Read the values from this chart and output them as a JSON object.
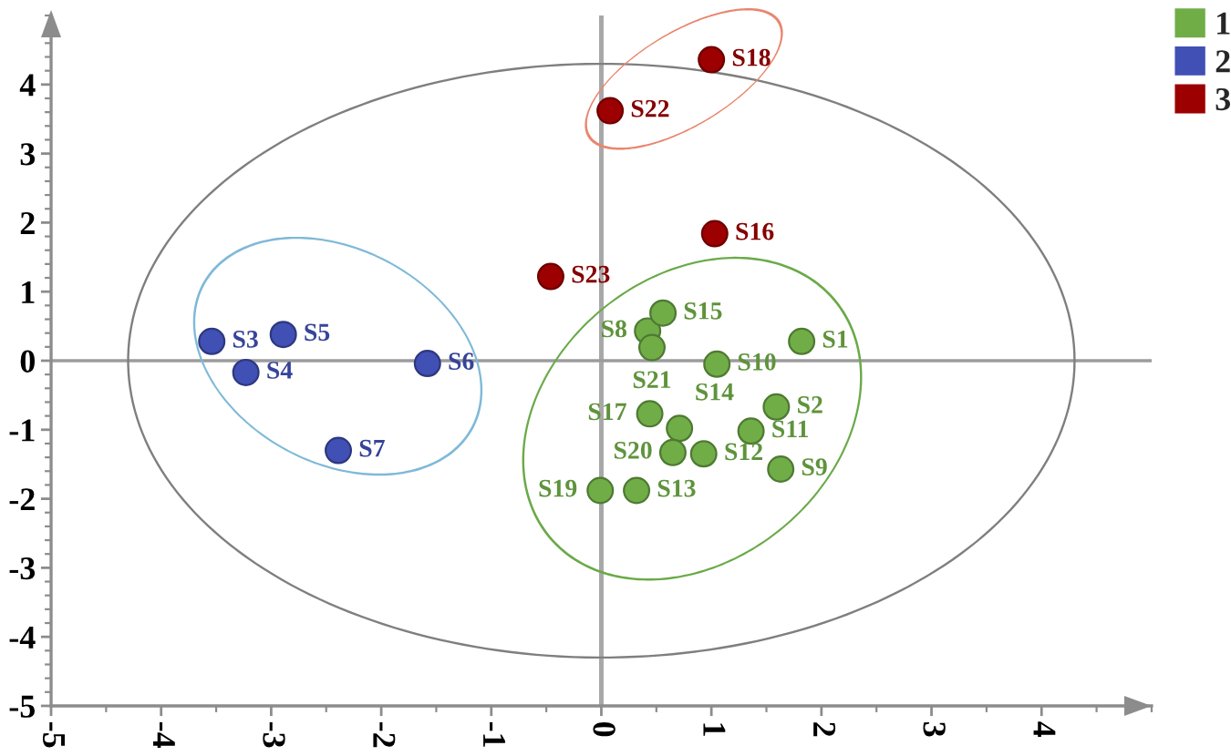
{
  "chart_data": {
    "type": "scatter",
    "xlim": [
      -5,
      5
    ],
    "ylim": [
      -5,
      5
    ],
    "xticks": [
      -5,
      -4,
      -3,
      -2,
      -1,
      0,
      1,
      2,
      3,
      4
    ],
    "yticks": [
      -5,
      -4,
      -3,
      -2,
      -1,
      0,
      1,
      2,
      3,
      4
    ],
    "marker": "circle",
    "legend": "top right",
    "ref_lines": [
      {
        "axis": "x",
        "value": 0,
        "color": "#a8a8a8"
      },
      {
        "axis": "y",
        "value": 0,
        "color": "#9c9c9c"
      }
    ],
    "series": [
      {
        "name": "1",
        "color": "#70ad47",
        "x": [
          1.82,
          1.59,
          0.42,
          1.63,
          1.05,
          1.36,
          0.93,
          0.32,
          0.71,
          0.56,
          0.44,
          -0.01,
          0.65,
          0.46
        ],
        "values": [
          0.28,
          -0.67,
          0.43,
          -1.57,
          -0.05,
          -1.02,
          -1.35,
          -1.88,
          -0.98,
          0.69,
          -0.77,
          -1.88,
          -1.33,
          0.19
        ]
      },
      {
        "name": "2",
        "color": "#4050b4",
        "x": [
          -3.54,
          -3.23,
          -2.89,
          -1.58,
          -2.39
        ],
        "values": [
          0.28,
          -0.17,
          0.38,
          -0.04,
          -1.3
        ]
      },
      {
        "name": "3",
        "color": "#9c0000",
        "x": [
          1.03,
          1.0,
          0.08,
          -0.46
        ],
        "values": [
          1.84,
          4.36,
          3.62,
          1.22
        ]
      }
    ],
    "annotations": [
      {
        "text": "S1",
        "x": 1.82,
        "y": 0.28
      },
      {
        "text": "S2",
        "x": 1.59,
        "y": -0.67
      },
      {
        "text": "S3",
        "x": -3.54,
        "y": 0.28
      },
      {
        "text": "S4",
        "x": -3.23,
        "y": -0.17
      },
      {
        "text": "S5",
        "x": -2.89,
        "y": 0.38
      },
      {
        "text": "S6",
        "x": -1.58,
        "y": -0.04
      },
      {
        "text": "S7",
        "x": -2.39,
        "y": -1.3
      },
      {
        "text": "S8",
        "x": 0.42,
        "y": 0.43
      },
      {
        "text": "S9",
        "x": 1.63,
        "y": -1.57
      },
      {
        "text": "S10",
        "x": 1.05,
        "y": -0.05
      },
      {
        "text": "S11",
        "x": 1.36,
        "y": -1.02
      },
      {
        "text": "S12",
        "x": 0.93,
        "y": -1.35
      },
      {
        "text": "S13",
        "x": 0.32,
        "y": -1.88
      },
      {
        "text": "S14",
        "x": 0.71,
        "y": -0.98
      },
      {
        "text": "S15",
        "x": 0.56,
        "y": 0.69
      },
      {
        "text": "S16",
        "x": 1.03,
        "y": 1.84
      },
      {
        "text": "S17",
        "x": 0.44,
        "y": -0.77
      },
      {
        "text": "S18",
        "x": 1.0,
        "y": 4.36
      },
      {
        "text": "S19",
        "x": -0.01,
        "y": -1.88
      },
      {
        "text": "S20",
        "x": 0.65,
        "y": -1.33
      },
      {
        "text": "S21",
        "x": 0.46,
        "y": 0.19
      },
      {
        "text": "S22",
        "x": 0.08,
        "y": 3.62
      },
      {
        "text": "S23",
        "x": -0.46,
        "y": 1.22
      }
    ]
  }
}
